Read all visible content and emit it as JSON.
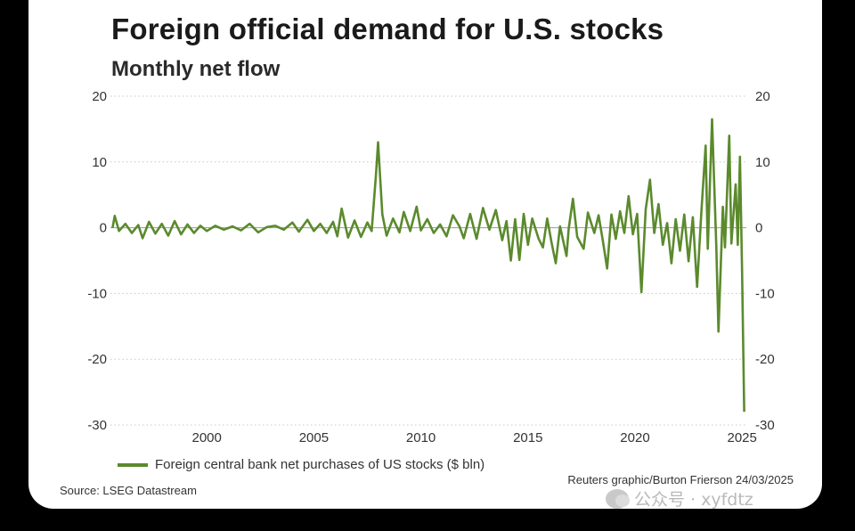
{
  "chart_data": {
    "type": "line",
    "title": "Foreign official demand for U.S. stocks",
    "subtitle": "Monthly net flow",
    "xlabel": "",
    "ylabel": "",
    "xlim": [
      1995.5,
      2025.2
    ],
    "ylim": [
      -30,
      20
    ],
    "x_ticks": [
      2000,
      2005,
      2010,
      2015,
      2020,
      2025
    ],
    "y_ticks": [
      20,
      10,
      0,
      -10,
      -20,
      -30
    ],
    "y_axis_sides": "both",
    "grid": "horizontal dotted",
    "legend_position": "bottom-left",
    "color": "#5b8a2d",
    "series": [
      {
        "name": "Foreign central bank net purchases of US stocks ($ bln)",
        "points": [
          [
            1995.6,
            0.0
          ],
          [
            1995.7,
            1.8
          ],
          [
            1995.9,
            -0.5
          ],
          [
            1996.2,
            0.6
          ],
          [
            1996.5,
            -0.8
          ],
          [
            1996.8,
            0.4
          ],
          [
            1997.0,
            -1.6
          ],
          [
            1997.3,
            0.9
          ],
          [
            1997.6,
            -0.9
          ],
          [
            1997.9,
            0.6
          ],
          [
            1998.2,
            -1.2
          ],
          [
            1998.5,
            1.0
          ],
          [
            1998.8,
            -1.0
          ],
          [
            1999.1,
            0.5
          ],
          [
            1999.4,
            -0.8
          ],
          [
            1999.7,
            0.3
          ],
          [
            2000.0,
            -0.5
          ],
          [
            2000.4,
            0.3
          ],
          [
            2000.8,
            -0.3
          ],
          [
            2001.2,
            0.2
          ],
          [
            2001.6,
            -0.4
          ],
          [
            2002.0,
            0.6
          ],
          [
            2002.4,
            -0.7
          ],
          [
            2002.8,
            0.1
          ],
          [
            2003.2,
            0.3
          ],
          [
            2003.6,
            -0.3
          ],
          [
            2004.0,
            0.8
          ],
          [
            2004.3,
            -0.6
          ],
          [
            2004.7,
            1.2
          ],
          [
            2005.0,
            -0.5
          ],
          [
            2005.3,
            0.6
          ],
          [
            2005.6,
            -0.8
          ],
          [
            2005.9,
            0.9
          ],
          [
            2006.1,
            -1.3
          ],
          [
            2006.3,
            2.9
          ],
          [
            2006.6,
            -1.5
          ],
          [
            2006.9,
            1.1
          ],
          [
            2007.2,
            -1.4
          ],
          [
            2007.5,
            0.8
          ],
          [
            2007.7,
            -0.5
          ],
          [
            2007.9,
            8.0
          ],
          [
            2008.0,
            13.0
          ],
          [
            2008.2,
            2.0
          ],
          [
            2008.4,
            -1.2
          ],
          [
            2008.7,
            1.4
          ],
          [
            2009.0,
            -0.7
          ],
          [
            2009.2,
            2.4
          ],
          [
            2009.5,
            -0.5
          ],
          [
            2009.8,
            3.2
          ],
          [
            2010.0,
            -0.4
          ],
          [
            2010.3,
            1.3
          ],
          [
            2010.6,
            -0.8
          ],
          [
            2010.9,
            0.5
          ],
          [
            2011.2,
            -1.3
          ],
          [
            2011.5,
            1.9
          ],
          [
            2011.8,
            0.2
          ],
          [
            2012.0,
            -1.6
          ],
          [
            2012.3,
            2.1
          ],
          [
            2012.6,
            -1.7
          ],
          [
            2012.9,
            3.0
          ],
          [
            2013.2,
            -0.3
          ],
          [
            2013.5,
            2.7
          ],
          [
            2013.8,
            -1.9
          ],
          [
            2014.0,
            1.0
          ],
          [
            2014.2,
            -5.0
          ],
          [
            2014.4,
            1.3
          ],
          [
            2014.6,
            -4.9
          ],
          [
            2014.8,
            2.1
          ],
          [
            2015.0,
            -2.6
          ],
          [
            2015.2,
            1.4
          ],
          [
            2015.5,
            -1.7
          ],
          [
            2015.7,
            -3.0
          ],
          [
            2015.9,
            1.4
          ],
          [
            2016.1,
            -2.2
          ],
          [
            2016.3,
            -5.4
          ],
          [
            2016.5,
            0.2
          ],
          [
            2016.8,
            -4.3
          ],
          [
            2016.9,
            -0.2
          ],
          [
            2017.1,
            4.4
          ],
          [
            2017.3,
            -1.4
          ],
          [
            2017.6,
            -3.2
          ],
          [
            2017.8,
            2.3
          ],
          [
            2018.1,
            -0.8
          ],
          [
            2018.3,
            1.9
          ],
          [
            2018.5,
            -2.0
          ],
          [
            2018.7,
            -6.2
          ],
          [
            2018.9,
            2.0
          ],
          [
            2019.1,
            -1.7
          ],
          [
            2019.3,
            2.5
          ],
          [
            2019.5,
            -0.8
          ],
          [
            2019.7,
            4.8
          ],
          [
            2019.9,
            -1.0
          ],
          [
            2020.1,
            2.1
          ],
          [
            2020.3,
            -9.8
          ],
          [
            2020.5,
            2.8
          ],
          [
            2020.7,
            7.3
          ],
          [
            2020.9,
            -0.8
          ],
          [
            2021.1,
            3.6
          ],
          [
            2021.3,
            -2.6
          ],
          [
            2021.5,
            0.7
          ],
          [
            2021.7,
            -5.4
          ],
          [
            2021.9,
            1.3
          ],
          [
            2022.1,
            -3.5
          ],
          [
            2022.3,
            2.0
          ],
          [
            2022.5,
            -5.1
          ],
          [
            2022.7,
            1.6
          ],
          [
            2022.9,
            -9.0
          ],
          [
            2023.1,
            2.4
          ],
          [
            2023.3,
            12.5
          ],
          [
            2023.4,
            -3.2
          ],
          [
            2023.6,
            16.5
          ],
          [
            2023.8,
            -3.0
          ],
          [
            2023.9,
            -15.8
          ],
          [
            2024.1,
            3.2
          ],
          [
            2024.2,
            -3.0
          ],
          [
            2024.4,
            14.0
          ],
          [
            2024.5,
            -2.4
          ],
          [
            2024.7,
            6.6
          ],
          [
            2024.8,
            -2.6
          ],
          [
            2024.9,
            10.8
          ],
          [
            2025.0,
            -6.5
          ],
          [
            2025.1,
            -28.0
          ]
        ]
      }
    ]
  },
  "credit": "Reuters graphic/Burton Frierson 24/03/2025",
  "source": "Source: LSEG Datastream",
  "watermark": {
    "icon": "wechat-icon",
    "text": "公众号 · xyfdtz"
  }
}
